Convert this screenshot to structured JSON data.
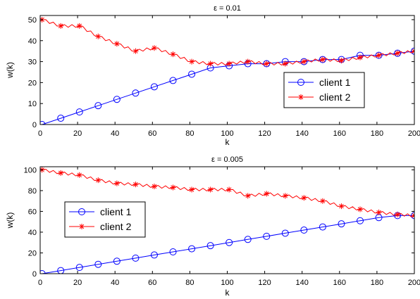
{
  "colors": {
    "client1": "#0000ff",
    "client2": "#ff0000",
    "axis": "#000000"
  },
  "chart_data": [
    {
      "type": "line",
      "title": "ε = 0.01",
      "xlabel": "k",
      "ylabel": "w(k)",
      "xlim": [
        0,
        200
      ],
      "ylim": [
        0,
        52
      ],
      "xticks": [
        "0",
        "20",
        "40",
        "60",
        "80",
        "100",
        "120",
        "140",
        "160",
        "180",
        "200"
      ],
      "yticks": [
        "0",
        "10",
        "20",
        "30",
        "40",
        "50"
      ],
      "legend_position": "center-right",
      "series": [
        {
          "name": "client 1",
          "marker": "circle",
          "color": "#0000ff",
          "x": [
            1,
            11,
            21,
            31,
            41,
            51,
            61,
            71,
            81,
            91,
            101,
            111,
            121,
            131,
            141,
            151,
            161,
            171,
            181,
            191,
            200
          ],
          "values": [
            0,
            3,
            6,
            9,
            12,
            15,
            18,
            21,
            24,
            27,
            28,
            29,
            29,
            30,
            30,
            31,
            31,
            33,
            33,
            34,
            35
          ]
        },
        {
          "name": "client 2",
          "marker": "star",
          "color": "#ff0000",
          "x": [
            1,
            11,
            21,
            31,
            41,
            51,
            61,
            71,
            81,
            91,
            101,
            111,
            121,
            131,
            141,
            151,
            161,
            171,
            181,
            191,
            200
          ],
          "values": [
            50,
            47,
            47,
            42,
            38.5,
            35,
            36.5,
            33.5,
            30,
            29,
            29,
            30,
            29,
            29,
            30,
            31,
            30.5,
            32,
            33,
            34,
            35
          ]
        }
      ]
    },
    {
      "type": "line",
      "title": "ε = 0.005",
      "xlabel": "k",
      "ylabel": "w(k)",
      "xlim": [
        0,
        200
      ],
      "ylim": [
        0,
        103
      ],
      "xticks": [
        "0",
        "20",
        "40",
        "60",
        "80",
        "100",
        "120",
        "140",
        "160",
        "180",
        "200"
      ],
      "yticks": [
        "0",
        "20",
        "40",
        "60",
        "80",
        "100"
      ],
      "legend_position": "center-left",
      "series": [
        {
          "name": "client 1",
          "marker": "circle",
          "color": "#0000ff",
          "x": [
            1,
            11,
            21,
            31,
            41,
            51,
            61,
            71,
            81,
            91,
            101,
            111,
            121,
            131,
            141,
            151,
            161,
            171,
            181,
            191,
            200
          ],
          "values": [
            0,
            3,
            6,
            9,
            12,
            15,
            18,
            21,
            24,
            27,
            30,
            33,
            36,
            39,
            42,
            45,
            48,
            51,
            54,
            56,
            56
          ]
        },
        {
          "name": "client 2",
          "marker": "star",
          "color": "#ff0000",
          "x": [
            1,
            11,
            21,
            31,
            41,
            51,
            61,
            71,
            81,
            91,
            101,
            111,
            121,
            131,
            141,
            151,
            161,
            171,
            181,
            191,
            200
          ],
          "values": [
            100,
            97,
            95,
            90,
            87,
            86,
            84,
            83,
            81,
            81,
            81,
            75,
            77,
            75,
            73,
            70,
            65,
            62,
            59,
            57,
            56
          ]
        }
      ]
    }
  ]
}
